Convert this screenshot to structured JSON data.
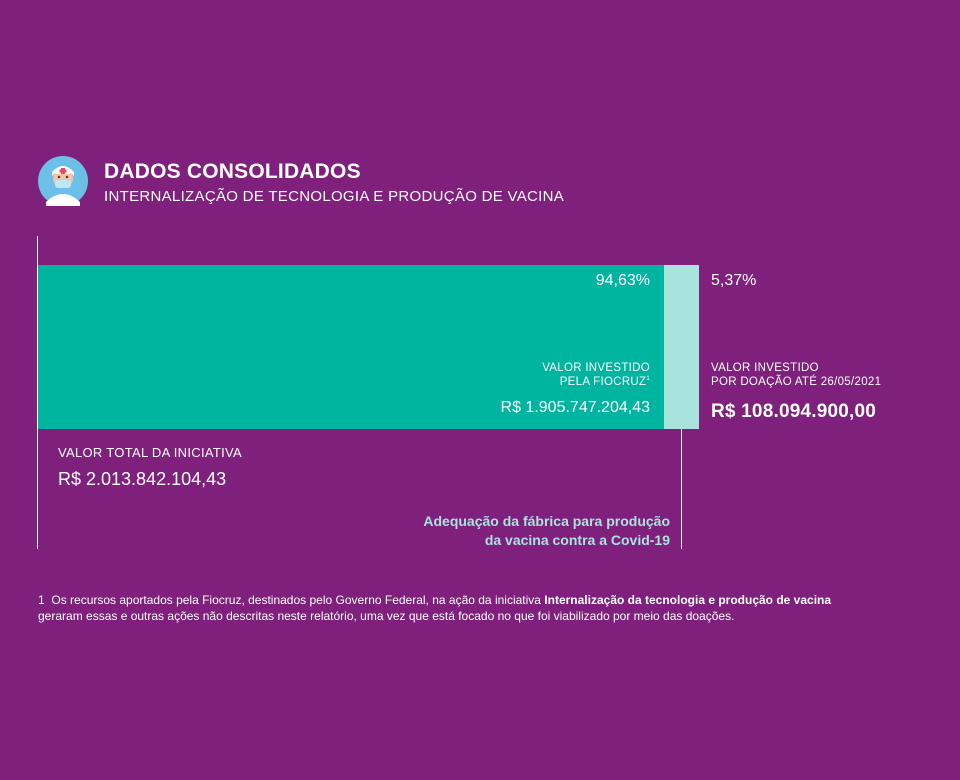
{
  "header": {
    "title": "DADOS CONSOLIDADOS",
    "subtitle": "INTERNALIZAÇÃO DE TECNOLOGIA E PRODUÇÃO DE VACINA"
  },
  "colors": {
    "background": "#7f207d",
    "fiocruz_bar": "#00b5a0",
    "donation_bar": "#a8e3dc",
    "highlight_text": "#a8e3dc"
  },
  "chart_data": {
    "type": "bar",
    "orientation": "horizontal-stacked",
    "series": [
      {
        "share": 94.63,
        "percent_label": "94,63%",
        "label": "VALOR INVESTIDO PELA FIOCRUZ",
        "footnote_marker": "1",
        "value_label": "R$ 1.905.747.204,43",
        "value": 1905747204.43,
        "color": "#00b5a0"
      },
      {
        "share": 5.37,
        "percent_label": "5,37%",
        "label_line1": "VALOR INVESTIDO",
        "label_line2": "POR DOAÇÃO ATÉ 26/05/2021",
        "value_label": "R$ 108.094.900,00",
        "value": 108094900.0,
        "color": "#a8e3dc"
      }
    ],
    "total": {
      "label": "VALOR TOTAL DA INICIATIVA",
      "value_label": "R$ 2.013.842.104,43",
      "value": 2013842104.43
    },
    "annotation_line1": "Adequação da fábrica para produção",
    "annotation_line2": "da vacina contra a Covid-19"
  },
  "labels": {
    "fiocruz_line1": "VALOR INVESTIDO",
    "fiocruz_line2": "PELA FIOCRUZ"
  },
  "footnote": {
    "marker": "1",
    "text_before": "Os recursos aportados pela Fiocruz, destinados pelo Governo Federal, na ação da iniciativa ",
    "bold": "Internalização da tecnologia e produção de vacina",
    "text_after": "geraram essas e outras ações não descritas neste relatório, uma vez que está focado no que foi viabilizado por meio das doações."
  },
  "icons": {
    "avatar": "health-worker-avatar-icon"
  }
}
